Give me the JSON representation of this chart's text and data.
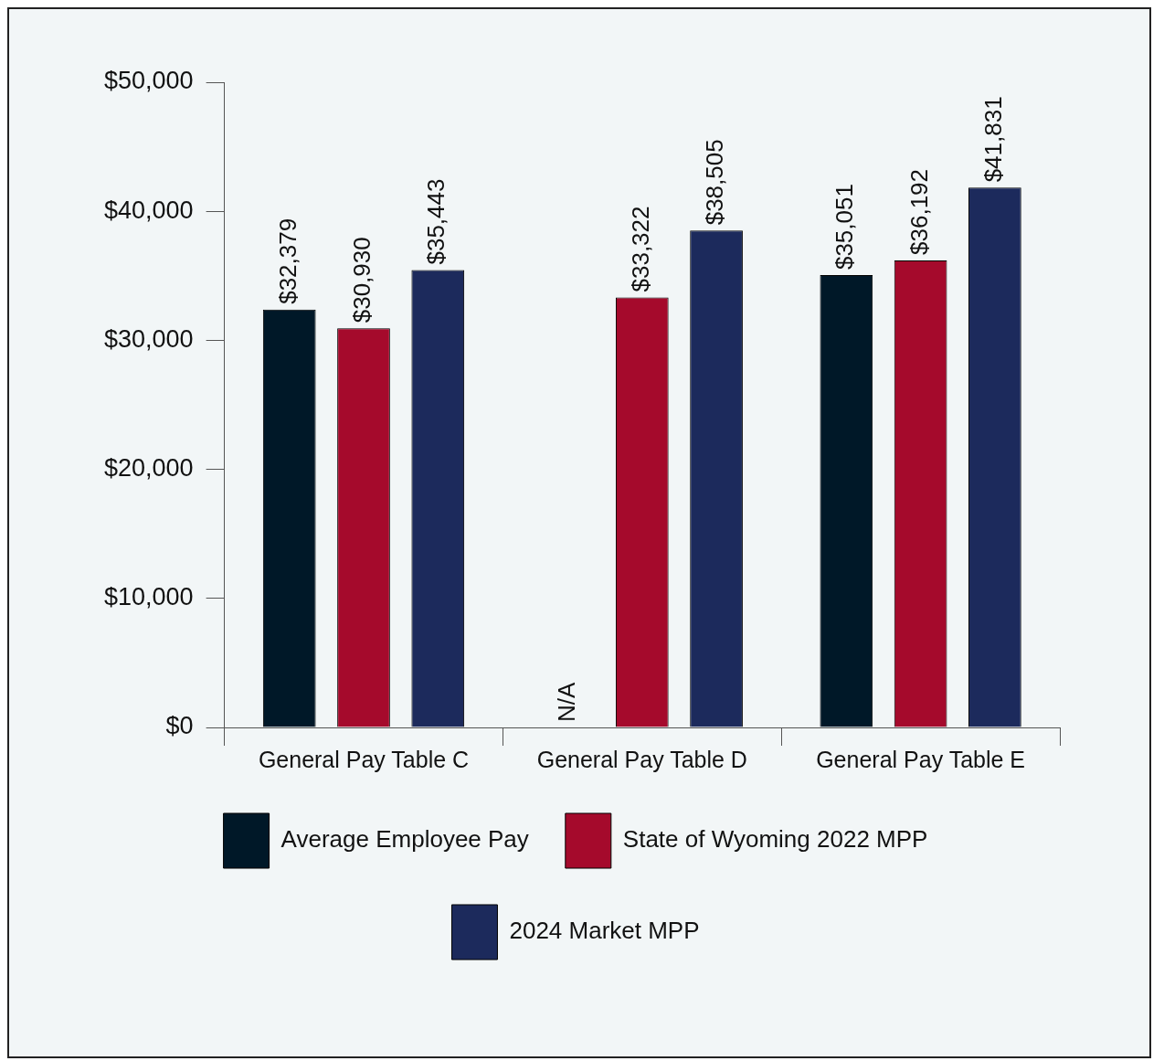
{
  "chart_data": {
    "type": "bar",
    "categories": [
      "General Pay Table C",
      "General Pay Table D",
      "General Pay Table E"
    ],
    "series": [
      {
        "name": "Average Employee Pay",
        "color": "#001828",
        "values": [
          32379,
          null,
          35051
        ],
        "value_labels": [
          "$32,379",
          "N/A",
          "$35,051"
        ]
      },
      {
        "name": "State of Wyoming 2022 MPP",
        "color": "#a50a2c",
        "values": [
          30930,
          33322,
          36192
        ],
        "value_labels": [
          "$30,930",
          "$33,322",
          "$36,192"
        ]
      },
      {
        "name": "2024 Market MPP",
        "color": "#1c2a5c",
        "values": [
          35443,
          38505,
          41831
        ],
        "value_labels": [
          "$35,443",
          "$38,505",
          "$41,831"
        ]
      }
    ],
    "ylim": [
      0,
      50000
    ],
    "yticks": [
      {
        "value": 0,
        "label": "$0"
      },
      {
        "value": 10000,
        "label": "$10,000"
      },
      {
        "value": 20000,
        "label": "$20,000"
      },
      {
        "value": 30000,
        "label": "$30,000"
      },
      {
        "value": 40000,
        "label": "$40,000"
      },
      {
        "value": 50000,
        "label": "$50,000"
      }
    ],
    "grid": false,
    "legend": "bottom"
  }
}
